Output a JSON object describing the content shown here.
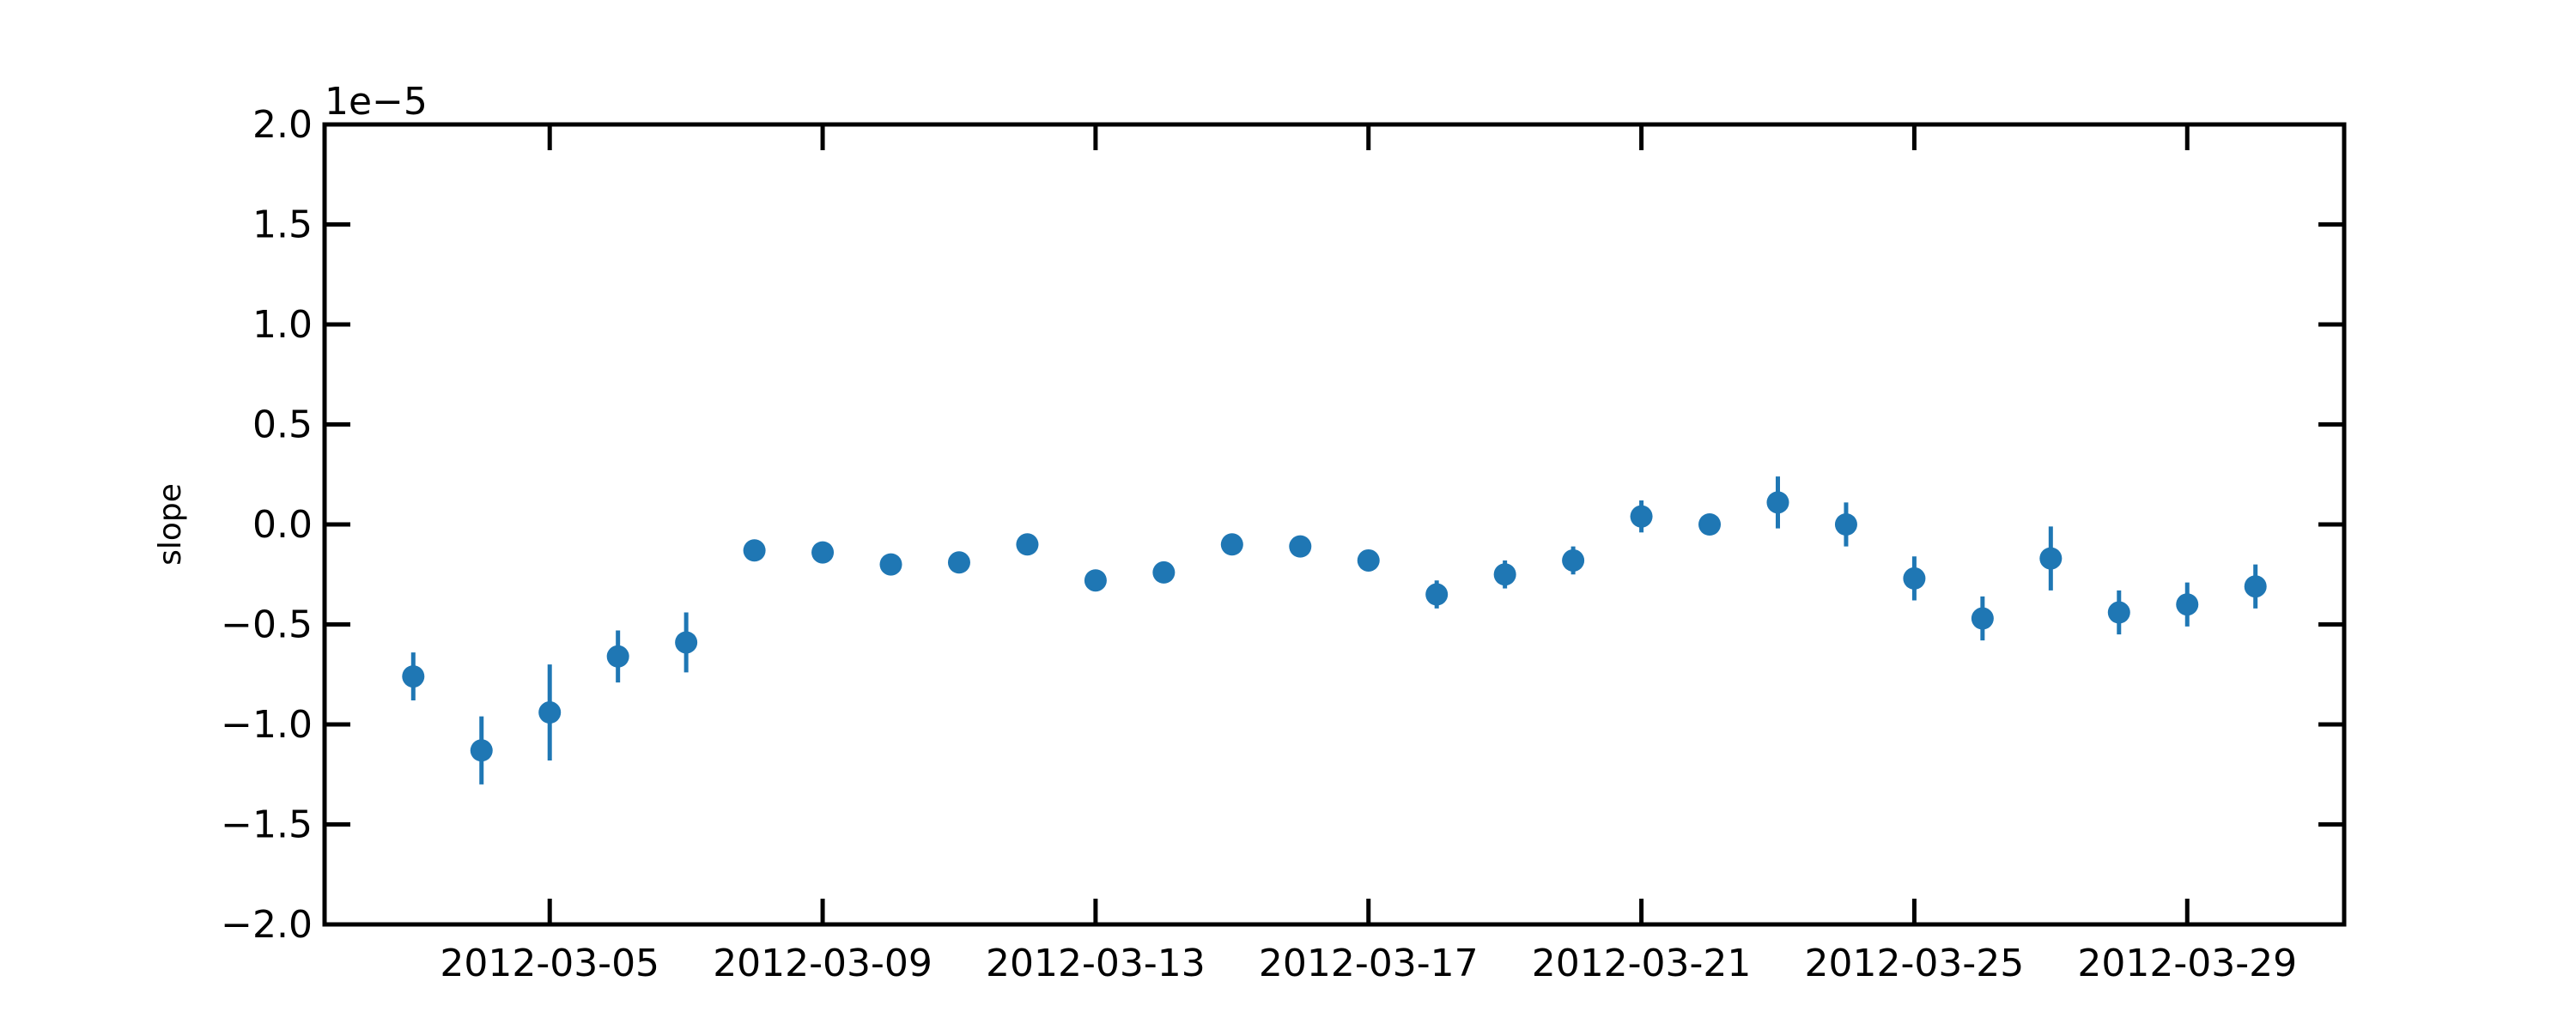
{
  "chart_data": {
    "type": "scatter",
    "title": "",
    "xlabel": "",
    "ylabel": "slope",
    "y_offset_label": "1e−5",
    "y_scale": 1e-05,
    "xlim": [
      "2012-03-01 16:48",
      "2012-03-31 07:12"
    ],
    "ylim": [
      -2e-05,
      2e-05
    ],
    "grid": false,
    "legend": "none",
    "x_ticks": [
      "2012-03-05",
      "2012-03-09",
      "2012-03-13",
      "2012-03-17",
      "2012-03-21",
      "2012-03-25",
      "2012-03-29"
    ],
    "y_ticks": [
      -2e-05,
      -1.5e-05,
      -1e-05,
      -5e-06,
      0.0,
      5e-06,
      1e-05,
      1.5e-05,
      2e-05
    ],
    "y_tick_labels": [
      "−2.0",
      "−1.5",
      "−1.0",
      "−0.5",
      "0.0",
      "0.5",
      "1.0",
      "1.5",
      "2.0"
    ],
    "color": "#1f77b4",
    "series": [
      {
        "points": [
          {
            "x": "2012-03-03",
            "y": -7.6e-06,
            "err": 1.2e-06
          },
          {
            "x": "2012-03-04",
            "y": -1.13e-05,
            "err": 1.7e-06
          },
          {
            "x": "2012-03-05",
            "y": -9.4e-06,
            "err": 2.4e-06
          },
          {
            "x": "2012-03-06",
            "y": -6.6e-06,
            "err": 1.3e-06
          },
          {
            "x": "2012-03-07",
            "y": -5.9e-06,
            "err": 1.5e-06
          },
          {
            "x": "2012-03-08",
            "y": -1.3e-06,
            "err": 3e-07
          },
          {
            "x": "2012-03-09",
            "y": -1.4e-06,
            "err": 3e-07
          },
          {
            "x": "2012-03-10",
            "y": -2e-06,
            "err": 3e-07
          },
          {
            "x": "2012-03-11",
            "y": -1.9e-06,
            "err": 3e-07
          },
          {
            "x": "2012-03-12",
            "y": -1e-06,
            "err": 3e-07
          },
          {
            "x": "2012-03-13",
            "y": -2.8e-06,
            "err": 3e-07
          },
          {
            "x": "2012-03-14",
            "y": -2.4e-06,
            "err": 3e-07
          },
          {
            "x": "2012-03-15",
            "y": -1e-06,
            "err": 3e-07
          },
          {
            "x": "2012-03-16",
            "y": -1.1e-06,
            "err": 3e-07
          },
          {
            "x": "2012-03-17",
            "y": -1.8e-06,
            "err": 3e-07
          },
          {
            "x": "2012-03-18",
            "y": -3.5e-06,
            "err": 7e-07
          },
          {
            "x": "2012-03-19",
            "y": -2.5e-06,
            "err": 7e-07
          },
          {
            "x": "2012-03-20",
            "y": -1.8e-06,
            "err": 7e-07
          },
          {
            "x": "2012-03-21",
            "y": 4e-07,
            "err": 8e-07
          },
          {
            "x": "2012-03-22",
            "y": 0.0,
            "err": 3e-07
          },
          {
            "x": "2012-03-23",
            "y": 1.1e-06,
            "err": 1.3e-06
          },
          {
            "x": "2012-03-24",
            "y": 0.0,
            "err": 1.1e-06
          },
          {
            "x": "2012-03-25",
            "y": -2.7e-06,
            "err": 1.1e-06
          },
          {
            "x": "2012-03-26",
            "y": -4.7e-06,
            "err": 1.1e-06
          },
          {
            "x": "2012-03-27",
            "y": -1.7e-06,
            "err": 1.6e-06
          },
          {
            "x": "2012-03-28",
            "y": -4.4e-06,
            "err": 1.1e-06
          },
          {
            "x": "2012-03-29",
            "y": -4e-06,
            "err": 1.1e-06
          },
          {
            "x": "2012-03-30",
            "y": -3.1e-06,
            "err": 1.1e-06
          }
        ]
      }
    ]
  }
}
